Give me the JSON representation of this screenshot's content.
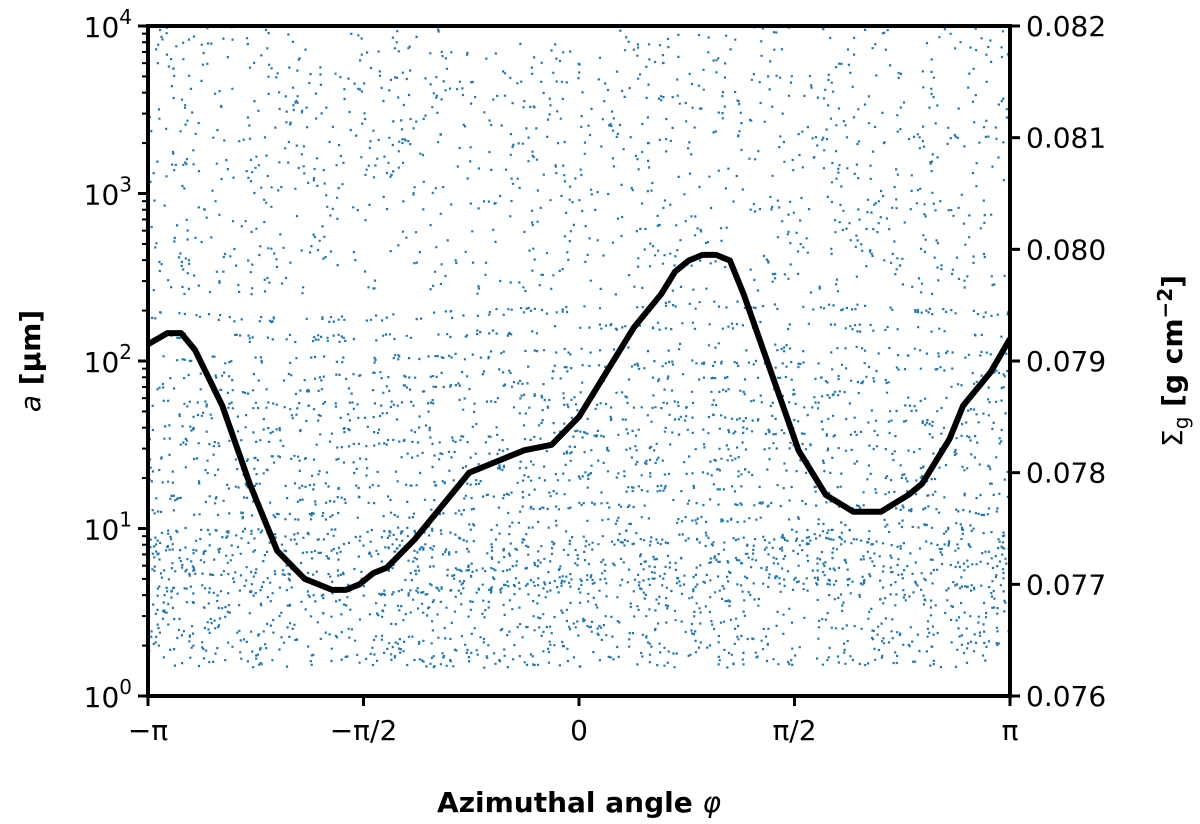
{
  "chart_data": {
    "type": "scatter",
    "title": "",
    "x_axis": {
      "label_text": "Azimuthal angle ",
      "label_symbol": "φ",
      "range": [
        -3.14159,
        3.14159
      ],
      "ticks": [
        {
          "value": -3.14159,
          "label": "−π"
        },
        {
          "value": -1.5708,
          "label": "−π/2"
        },
        {
          "value": 0,
          "label": "0"
        },
        {
          "value": 1.5708,
          "label": "π/2"
        },
        {
          "value": 3.14159,
          "label": "π"
        }
      ]
    },
    "y_axis_left": {
      "label_symbol": "a",
      "label_unit": " [μm]",
      "scale": "log",
      "range": [
        1,
        10000
      ],
      "ticks": [
        {
          "value": 1,
          "base": "10",
          "exp": "0"
        },
        {
          "value": 10,
          "base": "10",
          "exp": "1"
        },
        {
          "value": 100,
          "base": "10",
          "exp": "2"
        },
        {
          "value": 1000,
          "base": "10",
          "exp": "3"
        },
        {
          "value": 10000,
          "base": "10",
          "exp": "4"
        }
      ]
    },
    "y_axis_right": {
      "label_main": "Σ",
      "label_sub": "g",
      "label_unit": " [g cm",
      "label_exp": "−2",
      "label_close": "]",
      "scale": "linear",
      "range": [
        0.076,
        0.082
      ],
      "ticks": [
        "0.076",
        "0.077",
        "0.078",
        "0.079",
        "0.080",
        "0.081",
        "0.082"
      ]
    },
    "series": [
      {
        "kind": "scatter",
        "color": "#1f77b4",
        "description_bands_log10a": [
          0.66,
          0.78,
          0.9,
          1.02,
          1.12,
          1.21,
          1.3,
          1.38,
          1.46,
          1.55,
          1.63,
          1.71,
          1.78,
          1.87,
          1.95,
          2.05,
          2.18,
          2.3
        ],
        "y_min": 1.5,
        "y_max": 10000
      },
      {
        "kind": "line",
        "color": "#000000",
        "x": [
          -3.14159,
          -3.0,
          -2.9,
          -2.8,
          -2.6,
          -2.4,
          -2.2,
          -2.0,
          -1.8,
          -1.7,
          -1.6,
          -1.5,
          -1.4,
          -1.2,
          -1.0,
          -0.8,
          -0.6,
          -0.4,
          -0.2,
          0.0,
          0.2,
          0.4,
          0.6,
          0.7,
          0.8,
          0.9,
          1.0,
          1.1,
          1.2,
          1.4,
          1.6,
          1.8,
          2.0,
          2.2,
          2.4,
          2.5,
          2.6,
          2.7,
          2.8,
          3.0,
          3.14159
        ],
        "y": [
          0.07915,
          0.07925,
          0.07925,
          0.0791,
          0.0786,
          0.0779,
          0.0773,
          0.07705,
          0.07695,
          0.07695,
          0.077,
          0.0771,
          0.07715,
          0.0774,
          0.0777,
          0.078,
          0.0781,
          0.0782,
          0.07825,
          0.0785,
          0.0789,
          0.0793,
          0.0796,
          0.0798,
          0.0799,
          0.07995,
          0.07995,
          0.0799,
          0.0796,
          0.0789,
          0.0782,
          0.0778,
          0.07765,
          0.07765,
          0.0778,
          0.0779,
          0.0781,
          0.0783,
          0.0786,
          0.0789,
          0.0792
        ]
      }
    ]
  }
}
